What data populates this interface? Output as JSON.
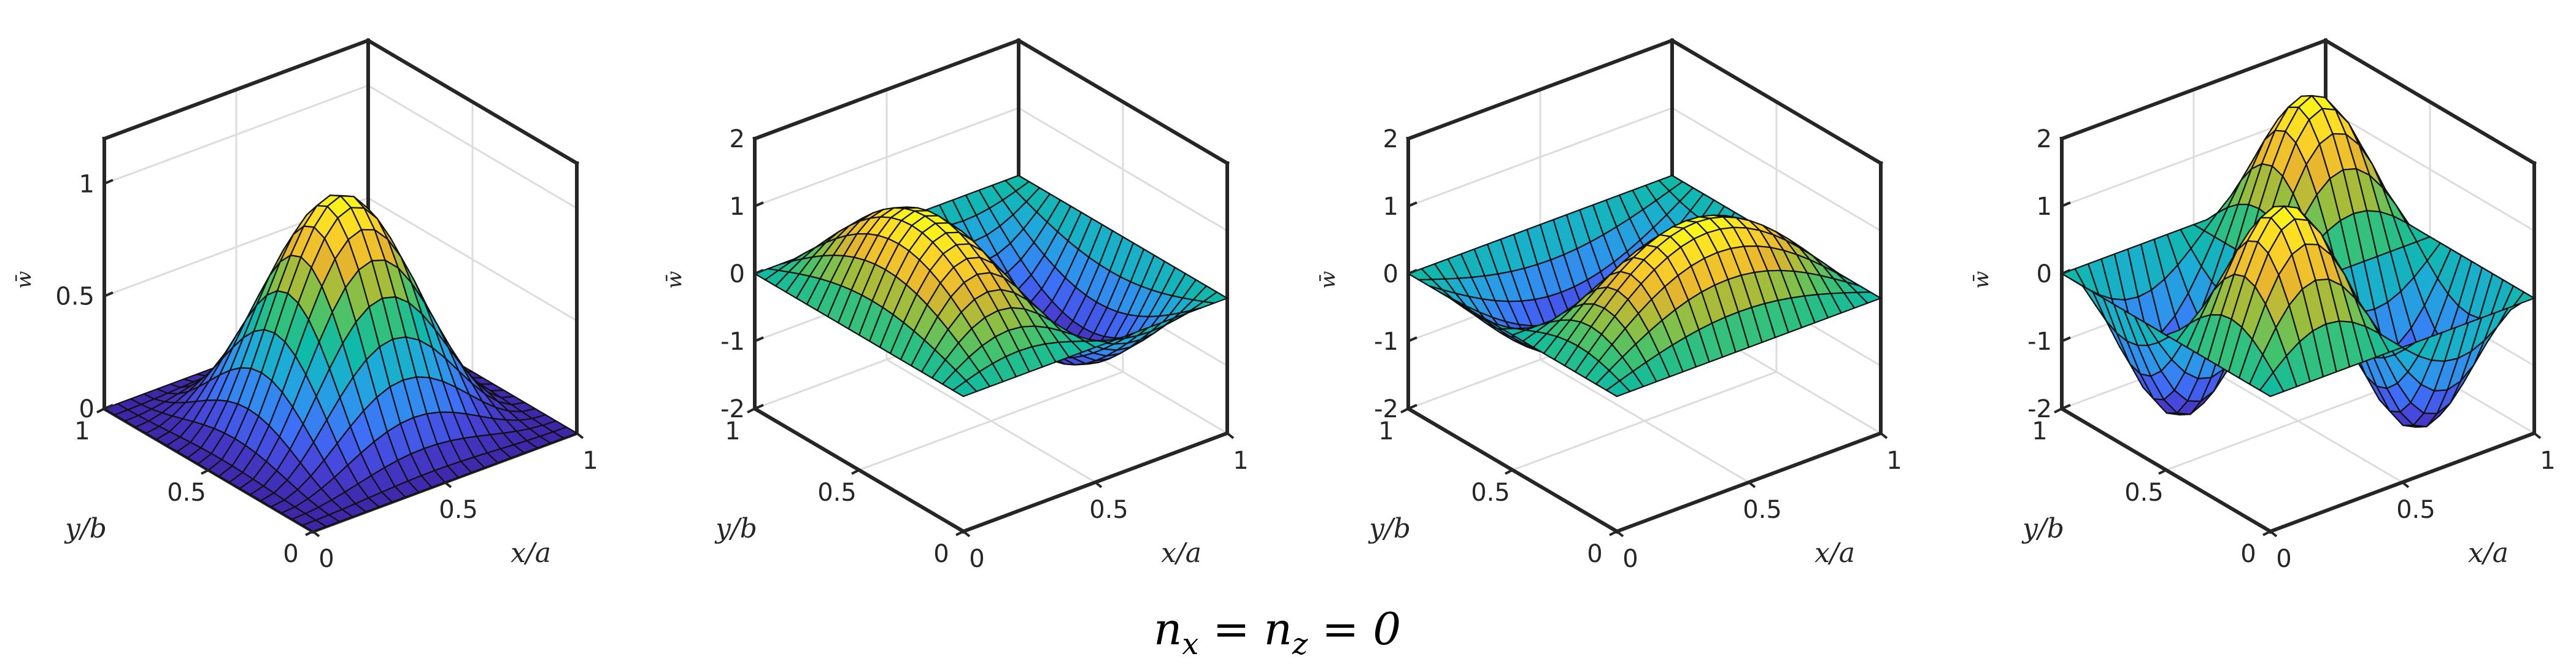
{
  "figure": {
    "caption_n": "n",
    "caption_sub1": "x",
    "caption_mid": " = n",
    "caption_sub2": "z",
    "caption_end": " = 0"
  },
  "colors": {
    "frame": "#262626",
    "grid": "#dcdcdc",
    "colormap": [
      "#3e26a8",
      "#4743d8",
      "#3e6ff8",
      "#2d95eb",
      "#1cadd6",
      "#0dbba4",
      "#41c36e",
      "#9bbe3c",
      "#e6b52e",
      "#fdd327",
      "#f9fb15"
    ]
  },
  "chart_data": [
    {
      "type": "surface",
      "mode": "1x1",
      "title": "",
      "xlabel": "x/a",
      "ylabel": "y/b",
      "zlabel": "w̄",
      "xlim": [
        0,
        1
      ],
      "ylim": [
        0,
        1
      ],
      "zlim": [
        0,
        1.2
      ],
      "x_ticks": [
        "0",
        "0.5",
        "1"
      ],
      "y_ticks": [
        "0",
        "0.5",
        "1"
      ],
      "z_ticks": [
        "0",
        "0.5",
        "1"
      ],
      "z_tick_values": [
        0,
        0.5,
        1
      ],
      "function": "w = (sin(pi*x) * sin(pi*y))^2",
      "peak": 1.0
    },
    {
      "type": "surface",
      "mode": "2x1",
      "title": "",
      "xlabel": "x/a",
      "ylabel": "y/b",
      "zlabel": "w̄",
      "xlim": [
        0,
        1
      ],
      "ylim": [
        0,
        1
      ],
      "zlim": [
        -2,
        2
      ],
      "x_ticks": [
        "0",
        "0.5",
        "1"
      ],
      "y_ticks": [
        "0",
        "0.5",
        "1"
      ],
      "z_ticks": [
        "-2",
        "-1",
        "0",
        "1",
        "2"
      ],
      "z_tick_values": [
        -2,
        -1,
        0,
        1,
        2
      ],
      "function": "w = 1.4 * sin(2*pi*x) * sin(pi*y)",
      "peak": 1.4
    },
    {
      "type": "surface",
      "mode": "1x2",
      "title": "",
      "xlabel": "x/a",
      "ylabel": "y/b",
      "zlabel": "w̄",
      "xlim": [
        0,
        1
      ],
      "ylim": [
        0,
        1
      ],
      "zlim": [
        -2,
        2
      ],
      "x_ticks": [
        "0",
        "0.5",
        "1"
      ],
      "y_ticks": [
        "0",
        "0.5",
        "1"
      ],
      "z_ticks": [
        "-2",
        "-1",
        "0",
        "1",
        "2"
      ],
      "z_tick_values": [
        -2,
        -1,
        0,
        1,
        2
      ],
      "function": "w = 1.4 * sin(pi*x) * sin(2*pi*y)",
      "peak": 1.4
    },
    {
      "type": "surface",
      "mode": "2x2",
      "title": "",
      "xlabel": "x/a",
      "ylabel": "y/b",
      "zlabel": "w̄",
      "xlim": [
        0,
        1
      ],
      "ylim": [
        0,
        1
      ],
      "zlim": [
        -2,
        2
      ],
      "x_ticks": [
        "0",
        "0.5",
        "1"
      ],
      "y_ticks": [
        "0",
        "0.5",
        "1"
      ],
      "z_ticks": [
        "-2",
        "-1",
        "0",
        "1",
        "2"
      ],
      "z_tick_values": [
        -2,
        -1,
        0,
        1,
        2
      ],
      "function": "w = 2 * sin(2*pi*x) * sin(2*pi*y)",
      "peak": 2.0
    }
  ]
}
